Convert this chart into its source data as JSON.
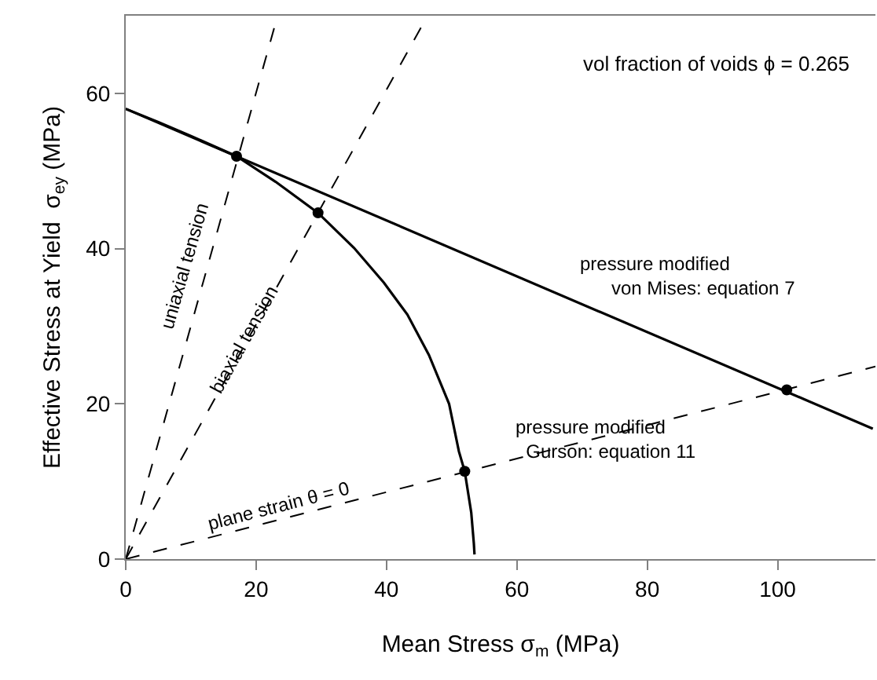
{
  "chart_data": {
    "type": "line",
    "xlabel": "Mean Stress σ$_{m}$ (MPa)",
    "ylabel": "Effective Stress at Yield  σ$_{ey}$ (MPa)",
    "xlim": [
      0,
      115
    ],
    "xticks": [
      0,
      20,
      40,
      60,
      80,
      100
    ],
    "ylim": [
      0,
      70
    ],
    "yticks": [
      0,
      20,
      40,
      60
    ],
    "series": [
      {
        "color": "#000000",
        "line_style": "solid",
        "x": [
          0,
          114.6
        ],
        "values": [
          58,
          16.8
        ]
      },
      {
        "color": "#000000",
        "line_style": "solid",
        "x": [
          0,
          5,
          10,
          17,
          23,
          29.5,
          35,
          39.6,
          43.2,
          46.5,
          49.6,
          51.1,
          52,
          53,
          53.4,
          53.5
        ],
        "values": [
          58,
          56.3,
          54.5,
          51.9,
          48.6,
          44.6,
          40.1,
          35.6,
          31.5,
          26.3,
          20,
          13.9,
          11.3,
          6,
          2,
          0.6
        ]
      },
      {
        "color": "#000000",
        "line_style": "dashed",
        "x": [
          0,
          23.3
        ],
        "values": [
          0,
          70
        ]
      },
      {
        "color": "#000000",
        "line_style": "dashed",
        "x": [
          0,
          46.3
        ],
        "values": [
          0,
          70
        ]
      },
      {
        "color": "#000000",
        "line_style": "dashed",
        "x": [
          0,
          115
        ],
        "values": [
          0,
          24.8
        ]
      },
      {
        "type": "scatter",
        "color": "#000000",
        "marker": "circle",
        "x": [
          17,
          29.5,
          52,
          101.4
        ],
        "values": [
          51.9,
          44.6,
          11.3,
          21.8
        ]
      }
    ],
    "annotations": [
      "vol fraction of voids ϕ = 0.265",
      "pressure modified\n      von Mises: equation 7",
      "pressure modified\n  Gurson: equation 11",
      "uniaxial tension",
      "biaxial tension",
      "plane strain θ = 0"
    ]
  }
}
